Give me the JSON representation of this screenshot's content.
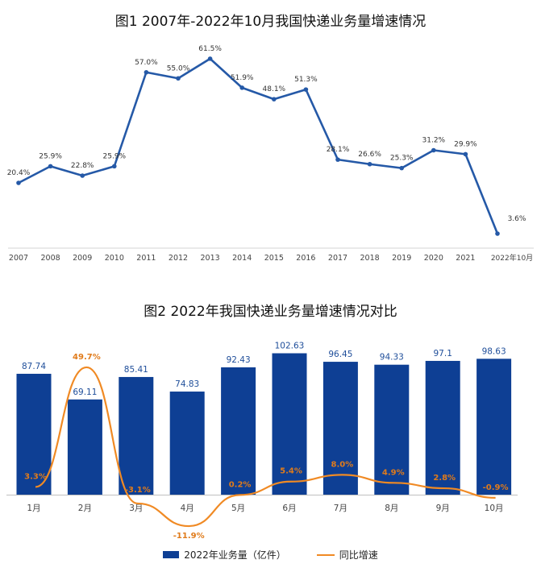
{
  "colors": {
    "bar": "#0e3f94",
    "line1": "#2559a7",
    "line2": "#f08a24",
    "label_dark": "#333333",
    "label_bar": "#1f4e9a",
    "label_line": "#e07b1a"
  },
  "chart1": {
    "title": "图1 2007年-2022年10月我国快递业务量增速情况"
  },
  "chart2": {
    "title": "图2 2022年我国快递业务量增速情况对比",
    "legend_bar": "2022年业务量（亿件）",
    "legend_line": "同比增速"
  },
  "chart_data": [
    {
      "type": "line",
      "title": "图1 2007年-2022年10月我国快递业务量增速情况",
      "categories": [
        "2007",
        "2008",
        "2009",
        "2010",
        "2011",
        "2012",
        "2013",
        "2014",
        "2015",
        "2016",
        "2017",
        "2018",
        "2019",
        "2020",
        "2021",
        "2022年10月"
      ],
      "series": [
        {
          "values": [
            20.4,
            25.9,
            22.8,
            25.9,
            57.0,
            55.0,
            61.5,
            51.9,
            48.1,
            51.3,
            28.1,
            26.6,
            25.3,
            31.2,
            29.9,
            3.6
          ]
        }
      ],
      "data_labels": [
        "20.4%",
        "25.9%",
        "22.8%",
        "25.9%",
        "57.0%",
        "55.0%",
        "61.5%",
        "51.9%",
        "48.1%",
        "51.3%",
        "28.1%",
        "26.6%",
        "25.3%",
        "31.2%",
        "29.9%",
        "3.6%"
      ]
    },
    {
      "type": "bar",
      "title": "图2 2022年我国快递业务量增速情况对比",
      "categories": [
        "1月",
        "2月",
        "3月",
        "4月",
        "5月",
        "6月",
        "7月",
        "8月",
        "9月",
        "10月"
      ],
      "series": [
        {
          "name": "2022年业务量（亿件）",
          "type": "bar",
          "values": [
            87.74,
            69.11,
            85.41,
            74.83,
            92.43,
            102.63,
            96.45,
            94.33,
            97.1,
            98.63
          ],
          "data_labels": [
            "87.74",
            "69.11",
            "85.41",
            "74.83",
            "92.43",
            "102.63",
            "96.45",
            "94.33",
            "97.1",
            "98.63"
          ]
        },
        {
          "name": "同比增速",
          "type": "line",
          "values": [
            3.3,
            49.7,
            -3.1,
            -11.9,
            0.2,
            5.4,
            8.0,
            4.9,
            2.8,
            -0.9
          ],
          "data_labels": [
            "3.3%",
            "49.7%",
            "-3.1%",
            "-11.9%",
            "0.2%",
            "5.4%",
            "8.0%",
            "4.9%",
            "2.8%",
            "-0.9%"
          ]
        }
      ],
      "legend": "bottom"
    }
  ]
}
